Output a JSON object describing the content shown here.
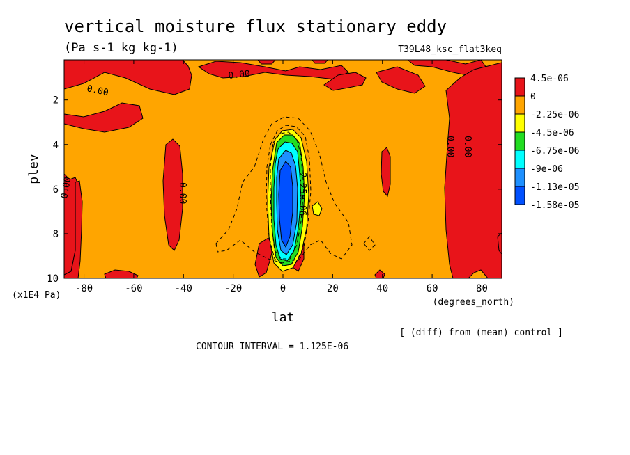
{
  "chart_data": {
    "type": "contour",
    "title": "vertical moisture flux stationary eddy",
    "units": "(Pa s-1 kg kg-1)",
    "experiment": "T39L48_ksc_flat3keq",
    "xlabel": "lat",
    "xunit_label": "(degrees_north)",
    "ylabel": "plev",
    "yunit_label": "(x1E4 Pa)",
    "xlim": [
      -88,
      88
    ],
    "ylim": [
      10,
      0.2
    ],
    "x_ticks": [
      "-80",
      "-60",
      "-40",
      "-20",
      "0",
      "20",
      "40",
      "60",
      "80"
    ],
    "x_tick_values": [
      -80,
      -60,
      -40,
      -20,
      0,
      20,
      40,
      60,
      80
    ],
    "y_ticks": [
      "2",
      "4",
      "6",
      "8",
      "10"
    ],
    "y_tick_values": [
      2,
      4,
      6,
      8,
      10
    ],
    "contour_interval_text": "CONTOUR INTERVAL = 1.125E-06",
    "note": "[ (diff) from (mean) control ]",
    "legend": [
      {
        "label": "4.5e-06",
        "color": "#e8141a"
      },
      {
        "label": "0",
        "color": "#ffa500"
      },
      {
        "label": "-2.25e-06",
        "color": "#ffff00"
      },
      {
        "label": "-4.5e-06",
        "color": "#22dd22"
      },
      {
        "label": "-6.75e-06",
        "color": "#00ffff"
      },
      {
        "label": "-9e-06",
        "color": "#1e90ff"
      },
      {
        "label": "-1.13e-05",
        "color": "#0050ff"
      },
      {
        "label": "-1.58e-05",
        "color": ""
      }
    ],
    "contour_labels": [
      "0.00",
      "0.00",
      "0.00",
      "0.00",
      "0.00",
      "0.00",
      "-2.25e-06"
    ],
    "background_fill": "#ffa500"
  }
}
